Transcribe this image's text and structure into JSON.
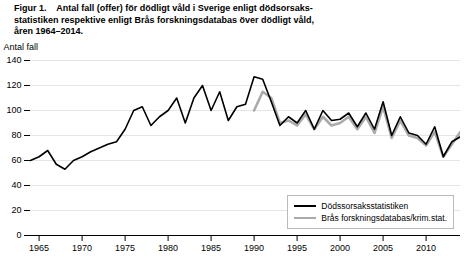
{
  "chart_data": {
    "type": "line",
    "title": "Figur 1.    Antal fall (offer) för dödligt våld i Sverige enligt dödsorsaks-\nstatistiken respektive enligt Brås forskningsdatabas över dödligt våld,\nåren 1964–2014.",
    "y_label": "Antal fall",
    "xlim": [
      1964,
      2014
    ],
    "ylim": [
      0,
      140
    ],
    "xticks": [
      1965,
      1970,
      1975,
      1980,
      1985,
      1990,
      1995,
      2000,
      2005,
      2010
    ],
    "yticks": [
      0,
      20,
      40,
      60,
      80,
      100,
      120,
      140
    ],
    "grid": true,
    "legend": "lower right",
    "series": [
      {
        "name": "Dödssorsaksstatistiken",
        "color": "#000000",
        "x": [
          1964,
          1965,
          1966,
          1967,
          1968,
          1969,
          1970,
          1971,
          1972,
          1973,
          1974,
          1975,
          1976,
          1977,
          1978,
          1979,
          1980,
          1981,
          1982,
          1983,
          1984,
          1985,
          1986,
          1987,
          1988,
          1989,
          1990,
          1991,
          1992,
          1993,
          1994,
          1995,
          1996,
          1997,
          1998,
          1999,
          2000,
          2001,
          2002,
          2003,
          2004,
          2005,
          2006,
          2007,
          2008,
          2009,
          2010,
          2011,
          2012,
          2013,
          2014
        ],
        "values": [
          60,
          63,
          68,
          57,
          53,
          60,
          63,
          67,
          70,
          73,
          75,
          85,
          100,
          103,
          88,
          95,
          100,
          110,
          90,
          110,
          120,
          100,
          115,
          92,
          103,
          105,
          127,
          125,
          107,
          88,
          95,
          90,
          100,
          85,
          100,
          92,
          93,
          98,
          87,
          98,
          85,
          107,
          80,
          95,
          82,
          80,
          73,
          87,
          63,
          75,
          79
        ]
      },
      {
        "name": "Brås forskningsdatabas/krim.stat.",
        "color": "#aaaaaa",
        "x": [
          1990,
          1991,
          1992,
          1993,
          1994,
          1995,
          1996,
          1997,
          1998,
          1999,
          2000,
          2001,
          2002,
          2003,
          2004,
          2005,
          2006,
          2007,
          2008,
          2009,
          2010,
          2011,
          2012,
          2013,
          2014
        ],
        "values": [
          100,
          115,
          110,
          90,
          92,
          88,
          97,
          85,
          95,
          88,
          90,
          95,
          85,
          95,
          82,
          103,
          78,
          92,
          80,
          78,
          72,
          83,
          63,
          73,
          83
        ]
      }
    ]
  }
}
